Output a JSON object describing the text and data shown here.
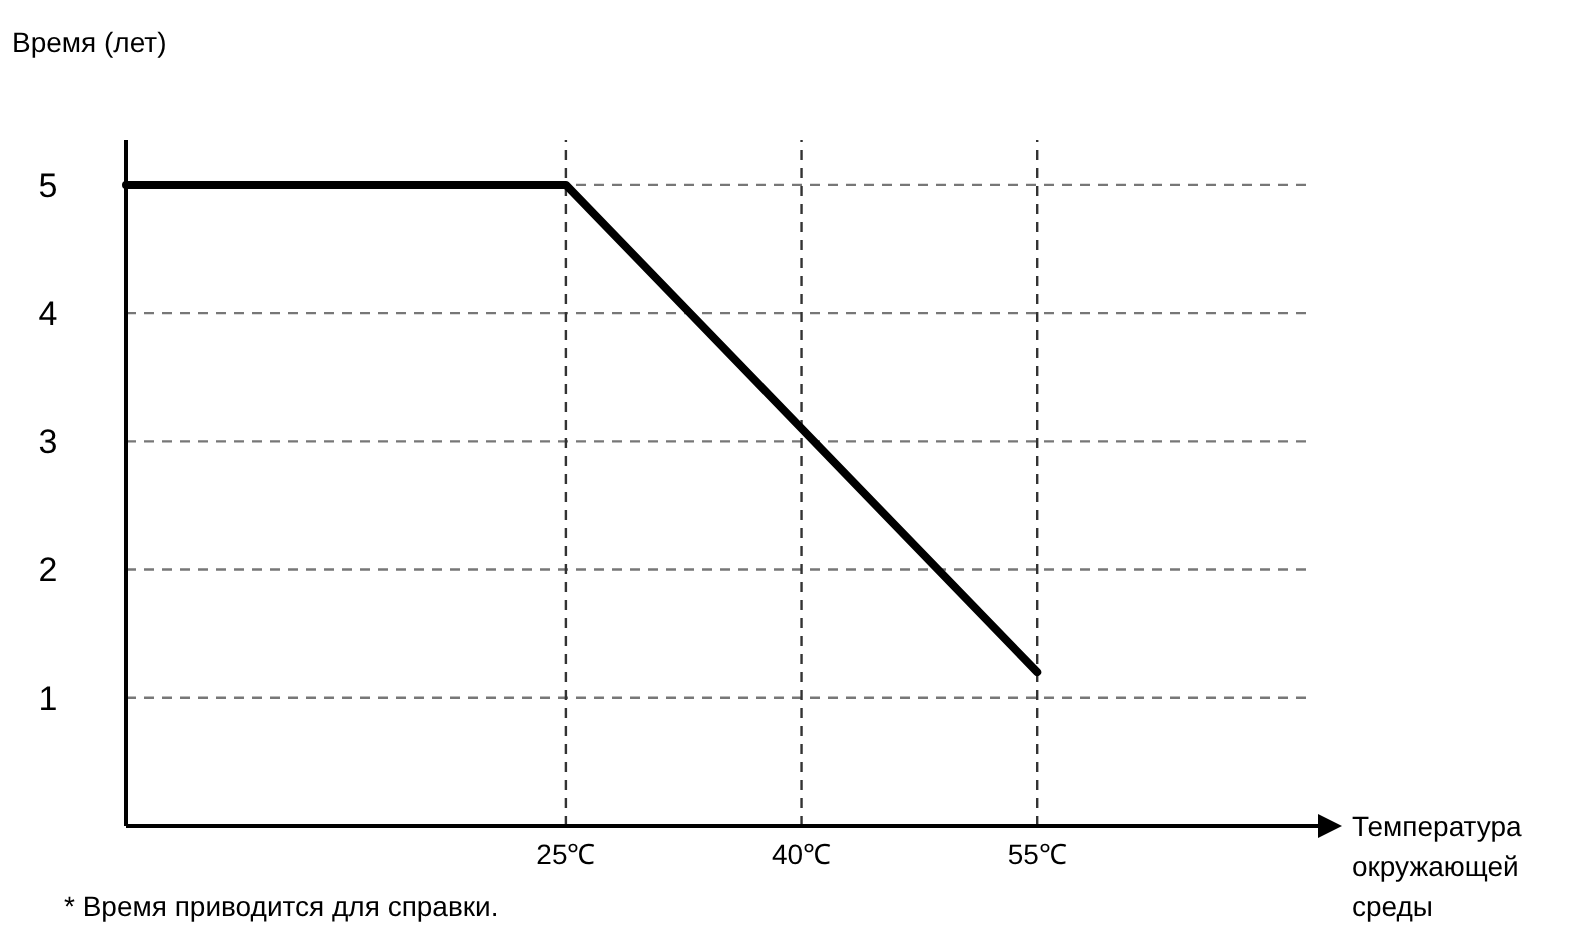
{
  "chart_data": {
    "type": "line",
    "ylabel": "Время (лет)",
    "xlabel": "Температура окружающей среды",
    "annotations": [
      "* Время приводится для справки."
    ],
    "x": [
      -3,
      25,
      55
    ],
    "series": [
      {
        "color": "#000000",
        "values": [
          5,
          5,
          1.2
        ]
      }
    ],
    "xlim": [
      -3,
      73
    ],
    "ylim": [
      0,
      5.35
    ],
    "xticks": [
      {
        "value": 25,
        "label": "25℃"
      },
      {
        "value": 40,
        "label": "40℃"
      },
      {
        "value": 55,
        "label": "55℃"
      }
    ],
    "yticks": [
      1,
      2,
      3,
      4,
      5
    ],
    "grid": true,
    "marker": "none",
    "line_style": "solid"
  }
}
